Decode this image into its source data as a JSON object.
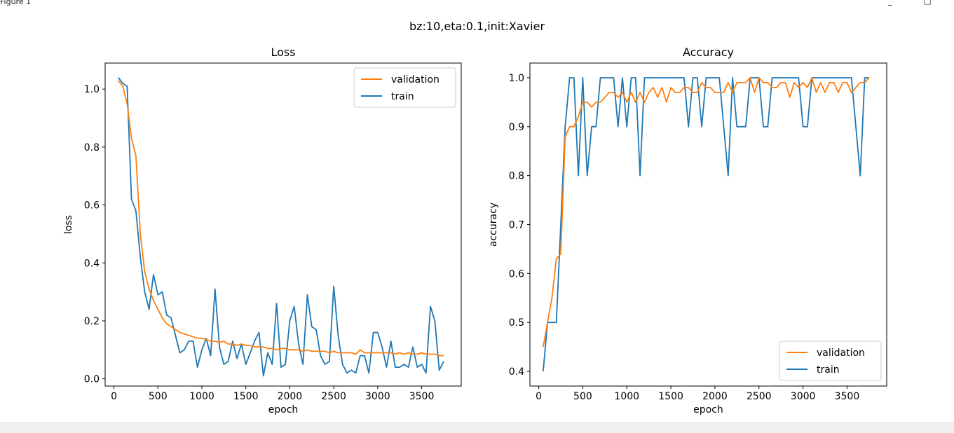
{
  "window": {
    "title": "Figure 1",
    "minimize_glyph": "_",
    "maximize_glyph": "□"
  },
  "figure": {
    "suptitle": "bz:10,eta:0.1,init:Xavier"
  },
  "colors": {
    "validation": "#ff7f0e",
    "train": "#1f77b4"
  },
  "chart_data": [
    {
      "type": "line",
      "title": "Loss",
      "xlabel": "epoch",
      "ylabel": "loss",
      "xlim": [
        -100,
        3950
      ],
      "ylim": [
        -0.025,
        1.09
      ],
      "xticks": [
        0,
        500,
        1000,
        1500,
        2000,
        2500,
        3000,
        3500
      ],
      "yticks": [
        0.0,
        0.2,
        0.4,
        0.6,
        0.8,
        1.0
      ],
      "ytick_labels": [
        "0.0",
        "0.2",
        "0.4",
        "0.6",
        "0.8",
        "1.0"
      ],
      "legend": {
        "position": "top-right",
        "entries": [
          "validation",
          "train"
        ]
      },
      "series": [
        {
          "name": "validation",
          "x": [
            50,
            100,
            150,
            200,
            250,
            300,
            350,
            400,
            450,
            500,
            550,
            600,
            650,
            700,
            750,
            800,
            850,
            900,
            950,
            1000,
            1050,
            1100,
            1150,
            1200,
            1250,
            1300,
            1350,
            1400,
            1450,
            1500,
            1550,
            1600,
            1650,
            1700,
            1750,
            1800,
            1850,
            1900,
            1950,
            2000,
            2050,
            2100,
            2150,
            2200,
            2250,
            2300,
            2350,
            2400,
            2450,
            2500,
            2550,
            2600,
            2650,
            2700,
            2750,
            2800,
            2850,
            2900,
            2950,
            3000,
            3050,
            3100,
            3150,
            3200,
            3250,
            3300,
            3350,
            3400,
            3450,
            3500,
            3550,
            3600,
            3650,
            3700,
            3750
          ],
          "y": [
            1.03,
            1.01,
            0.95,
            0.83,
            0.77,
            0.5,
            0.37,
            0.31,
            0.27,
            0.24,
            0.21,
            0.19,
            0.18,
            0.17,
            0.16,
            0.155,
            0.15,
            0.145,
            0.14,
            0.14,
            0.135,
            0.13,
            0.13,
            0.125,
            0.13,
            0.12,
            0.12,
            0.115,
            0.12,
            0.115,
            0.115,
            0.11,
            0.11,
            0.11,
            0.105,
            0.105,
            0.1,
            0.105,
            0.105,
            0.1,
            0.1,
            0.1,
            0.095,
            0.1,
            0.095,
            0.095,
            0.095,
            0.095,
            0.09,
            0.095,
            0.09,
            0.09,
            0.09,
            0.09,
            0.085,
            0.1,
            0.09,
            0.09,
            0.09,
            0.09,
            0.09,
            0.09,
            0.09,
            0.085,
            0.09,
            0.085,
            0.09,
            0.085,
            0.085,
            0.09,
            0.085,
            0.085,
            0.085,
            0.08,
            0.08
          ]
        },
        {
          "name": "train",
          "x": [
            50,
            100,
            150,
            200,
            250,
            300,
            350,
            400,
            450,
            500,
            550,
            600,
            650,
            700,
            750,
            800,
            850,
            900,
            950,
            1000,
            1050,
            1100,
            1150,
            1200,
            1250,
            1300,
            1350,
            1400,
            1450,
            1500,
            1550,
            1600,
            1650,
            1700,
            1750,
            1800,
            1850,
            1900,
            1950,
            2000,
            2050,
            2100,
            2150,
            2200,
            2250,
            2300,
            2350,
            2400,
            2450,
            2500,
            2550,
            2600,
            2650,
            2700,
            2750,
            2800,
            2850,
            2900,
            2950,
            3000,
            3050,
            3100,
            3150,
            3200,
            3250,
            3300,
            3350,
            3400,
            3450,
            3500,
            3550,
            3600,
            3650,
            3700,
            3750
          ],
          "y": [
            1.04,
            1.02,
            1.01,
            0.62,
            0.58,
            0.42,
            0.3,
            0.24,
            0.36,
            0.29,
            0.3,
            0.22,
            0.21,
            0.15,
            0.09,
            0.1,
            0.13,
            0.13,
            0.04,
            0.1,
            0.14,
            0.08,
            0.31,
            0.11,
            0.05,
            0.06,
            0.13,
            0.07,
            0.12,
            0.05,
            0.09,
            0.13,
            0.16,
            0.01,
            0.09,
            0.05,
            0.26,
            0.04,
            0.05,
            0.2,
            0.25,
            0.12,
            0.05,
            0.29,
            0.18,
            0.17,
            0.08,
            0.05,
            0.06,
            0.32,
            0.15,
            0.05,
            0.02,
            0.03,
            0.02,
            0.08,
            0.08,
            0.02,
            0.16,
            0.16,
            0.11,
            0.04,
            0.13,
            0.04,
            0.04,
            0.05,
            0.04,
            0.11,
            0.04,
            0.05,
            0.02,
            0.25,
            0.2,
            0.03,
            0.06
          ]
        }
      ]
    },
    {
      "type": "line",
      "title": "Accuracy",
      "xlabel": "epoch",
      "ylabel": "accuracy",
      "xlim": [
        -100,
        3950
      ],
      "ylim": [
        0.37,
        1.03
      ],
      "xticks": [
        0,
        500,
        1000,
        1500,
        2000,
        2500,
        3000,
        3500
      ],
      "yticks": [
        0.4,
        0.5,
        0.6,
        0.7,
        0.8,
        0.9,
        1.0
      ],
      "ytick_labels": [
        "0.4",
        "0.5",
        "0.6",
        "0.7",
        "0.8",
        "0.9",
        "1.0"
      ],
      "legend": {
        "position": "bottom-right",
        "entries": [
          "validation",
          "train"
        ]
      },
      "series": [
        {
          "name": "validation",
          "x": [
            50,
            100,
            150,
            200,
            250,
            300,
            350,
            400,
            450,
            500,
            550,
            600,
            650,
            700,
            750,
            800,
            850,
            900,
            950,
            1000,
            1050,
            1100,
            1150,
            1200,
            1250,
            1300,
            1350,
            1400,
            1450,
            1500,
            1550,
            1600,
            1650,
            1700,
            1750,
            1800,
            1850,
            1900,
            1950,
            2000,
            2050,
            2100,
            2150,
            2200,
            2250,
            2300,
            2350,
            2400,
            2450,
            2500,
            2550,
            2600,
            2650,
            2700,
            2750,
            2800,
            2850,
            2900,
            2950,
            3000,
            3050,
            3100,
            3150,
            3200,
            3250,
            3300,
            3350,
            3400,
            3450,
            3500,
            3550,
            3600,
            3650,
            3700,
            3750
          ],
          "y": [
            0.45,
            0.5,
            0.55,
            0.63,
            0.64,
            0.88,
            0.9,
            0.9,
            0.92,
            0.95,
            0.95,
            0.94,
            0.95,
            0.95,
            0.96,
            0.97,
            0.97,
            0.96,
            0.97,
            0.95,
            0.97,
            0.95,
            0.97,
            0.95,
            0.97,
            0.98,
            0.96,
            0.98,
            0.95,
            0.98,
            0.97,
            0.97,
            0.98,
            0.98,
            0.97,
            0.97,
            0.99,
            0.98,
            0.98,
            0.97,
            0.97,
            0.97,
            0.99,
            0.97,
            0.99,
            0.99,
            0.99,
            1.0,
            0.97,
            1.0,
            0.99,
            0.99,
            0.98,
            0.98,
            0.99,
            0.99,
            0.96,
            0.99,
            0.98,
            0.99,
            0.98,
            1.0,
            0.97,
            0.99,
            0.97,
            0.99,
            0.99,
            0.97,
            0.99,
            0.99,
            0.97,
            0.98,
            0.99,
            0.99,
            1.0
          ]
        },
        {
          "name": "train",
          "x": [
            50,
            100,
            150,
            200,
            250,
            300,
            350,
            400,
            450,
            500,
            550,
            600,
            650,
            700,
            750,
            800,
            850,
            900,
            950,
            1000,
            1050,
            1100,
            1150,
            1200,
            1250,
            1300,
            1350,
            1400,
            1450,
            1500,
            1550,
            1600,
            1650,
            1700,
            1750,
            1800,
            1850,
            1900,
            1950,
            2000,
            2050,
            2100,
            2150,
            2200,
            2250,
            2300,
            2350,
            2400,
            2450,
            2500,
            2550,
            2600,
            2650,
            2700,
            2750,
            2800,
            2850,
            2900,
            2950,
            3000,
            3050,
            3100,
            3150,
            3200,
            3250,
            3300,
            3350,
            3400,
            3450,
            3500,
            3550,
            3600,
            3650,
            3700,
            3750
          ],
          "y": [
            0.4,
            0.5,
            0.5,
            0.5,
            0.7,
            0.9,
            1.0,
            1.0,
            0.8,
            1.0,
            0.8,
            0.9,
            0.9,
            1.0,
            1.0,
            1.0,
            1.0,
            0.9,
            1.0,
            0.9,
            1.0,
            1.0,
            0.8,
            1.0,
            1.0,
            1.0,
            1.0,
            1.0,
            1.0,
            1.0,
            1.0,
            1.0,
            1.0,
            0.9,
            1.0,
            1.0,
            0.9,
            1.0,
            1.0,
            1.0,
            1.0,
            0.9,
            0.8,
            1.0,
            0.9,
            0.9,
            0.9,
            1.0,
            1.0,
            1.0,
            0.9,
            0.9,
            1.0,
            1.0,
            1.0,
            1.0,
            1.0,
            1.0,
            1.0,
            0.9,
            0.9,
            1.0,
            1.0,
            1.0,
            1.0,
            1.0,
            1.0,
            1.0,
            1.0,
            1.0,
            1.0,
            0.9,
            0.8,
            1.0,
            1.0
          ]
        }
      ]
    }
  ]
}
